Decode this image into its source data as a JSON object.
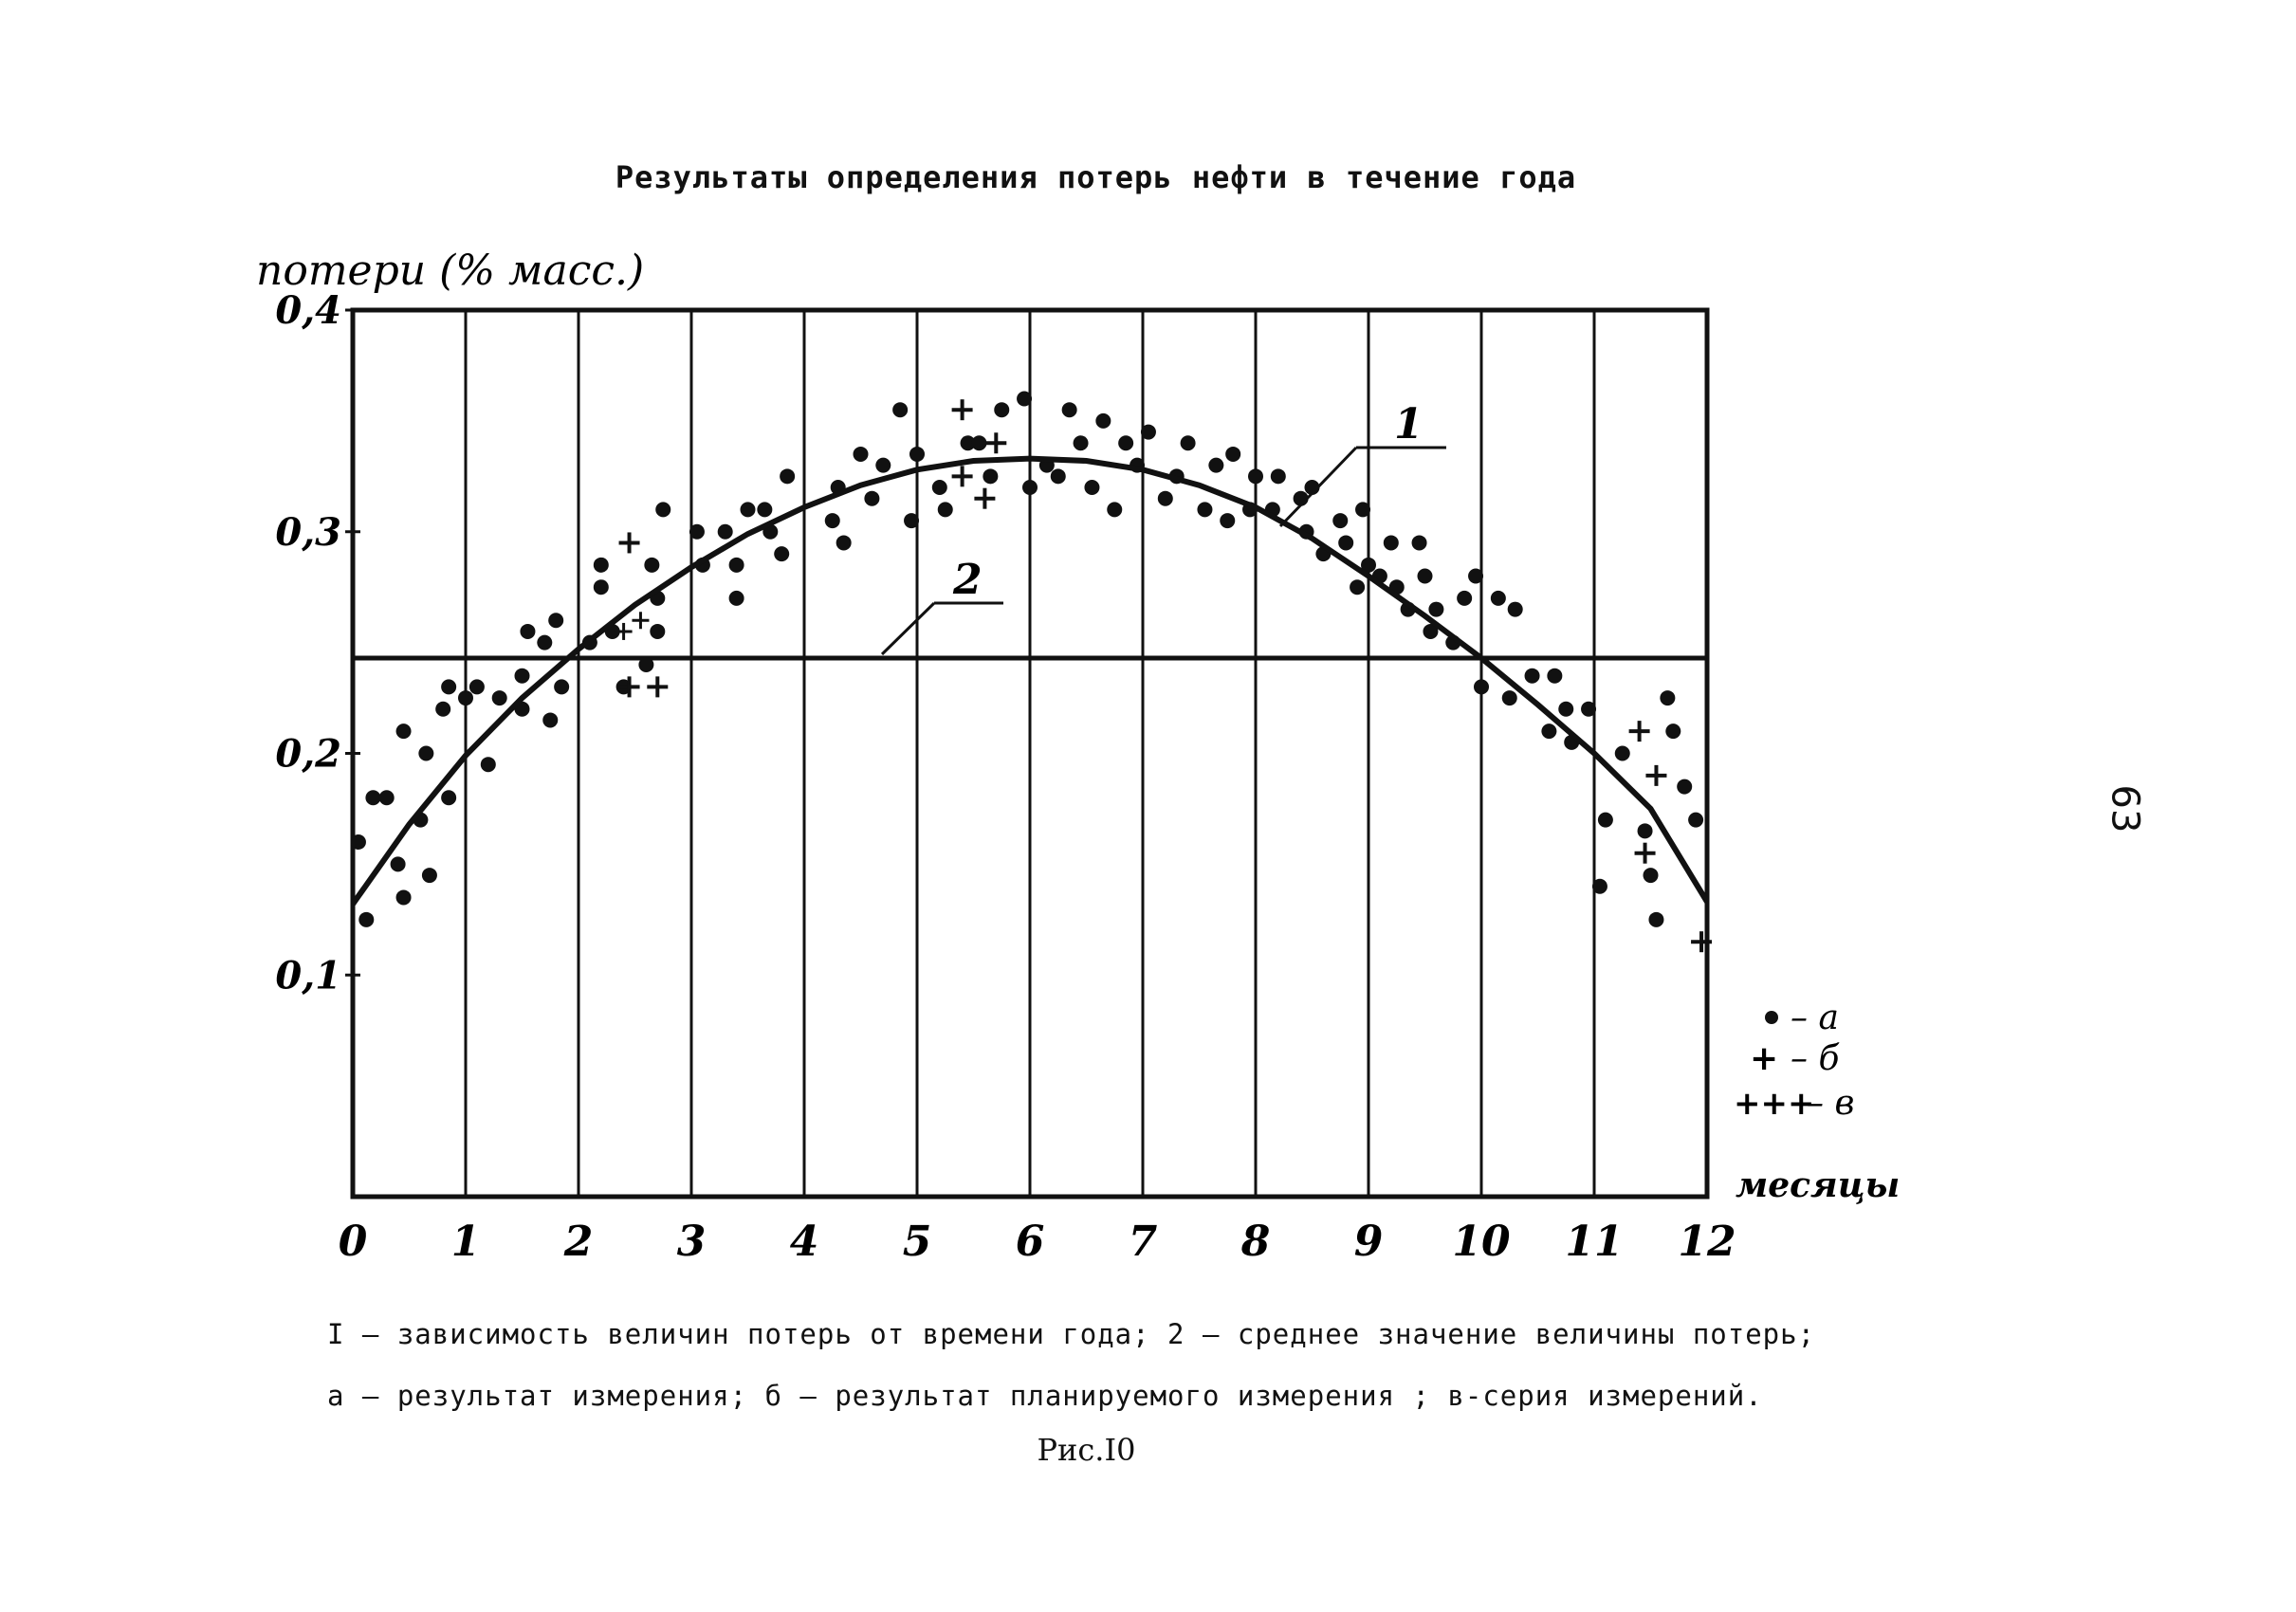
{
  "title": "Результаты определения потерь нефти в течение года",
  "page_number": "63",
  "caption_line1": "I – зависимость величин потерь от времени года; 2 – среднее значение величины потерь;",
  "caption_line2": "а – результат измерения; б – результат планируемого измерения ; в-серия измерений.",
  "figure_label": "Рис.I0",
  "chart_data": {
    "type": "scatter",
    "ylabel": "потери (% масс.)",
    "xlabel": "месяцы",
    "xlim": [
      0,
      12
    ],
    "ylim": [
      0,
      0.4
    ],
    "x_ticks": [
      "0",
      "1",
      "2",
      "3",
      "4",
      "5",
      "6",
      "7",
      "8",
      "9",
      "10",
      "11",
      "12"
    ],
    "y_ticks": [
      {
        "value": 0.1,
        "label": "0,1"
      },
      {
        "value": 0.2,
        "label": "0,2"
      },
      {
        "value": 0.3,
        "label": "0,3"
      },
      {
        "value": 0.4,
        "label": "0,4"
      }
    ],
    "grid": "vertical lines at each month",
    "legend": {
      "placement": "right",
      "entries": [
        {
          "symbol": "•",
          "label": "– а"
        },
        {
          "symbol": "+",
          "label": "– б"
        },
        {
          "symbol": "+++",
          "label": "– в"
        }
      ]
    },
    "curve_label": "1",
    "mean_label": "2",
    "curve": {
      "name": "1",
      "x": [
        0,
        0.5,
        1,
        1.5,
        2,
        2.5,
        3,
        3.5,
        4,
        4.5,
        5,
        5.5,
        6,
        6.5,
        7,
        7.5,
        8,
        8.5,
        9,
        9.5,
        10,
        10.5,
        11,
        11.5,
        12
      ],
      "y": [
        0.132,
        0.168,
        0.199,
        0.225,
        0.247,
        0.267,
        0.284,
        0.299,
        0.311,
        0.321,
        0.328,
        0.332,
        0.333,
        0.332,
        0.328,
        0.321,
        0.311,
        0.297,
        0.28,
        0.262,
        0.243,
        0.222,
        0.2,
        0.175,
        0.133
      ]
    },
    "mean_line": {
      "name": "2",
      "y": 0.243
    },
    "points_a": [
      [
        0.05,
        0.16
      ],
      [
        0.12,
        0.125
      ],
      [
        0.18,
        0.18
      ],
      [
        0.3,
        0.18
      ],
      [
        0.4,
        0.15
      ],
      [
        0.45,
        0.21
      ],
      [
        0.45,
        0.135
      ],
      [
        0.6,
        0.17
      ],
      [
        0.65,
        0.2
      ],
      [
        0.68,
        0.145
      ],
      [
        0.8,
        0.22
      ],
      [
        0.85,
        0.18
      ],
      [
        0.85,
        0.23
      ],
      [
        1.0,
        0.225
      ],
      [
        1.1,
        0.23
      ],
      [
        1.2,
        0.195
      ],
      [
        1.3,
        0.225
      ],
      [
        1.5,
        0.235
      ],
      [
        1.5,
        0.22
      ],
      [
        1.55,
        0.255
      ],
      [
        1.7,
        0.25
      ],
      [
        1.75,
        0.215
      ],
      [
        1.8,
        0.26
      ],
      [
        1.85,
        0.23
      ],
      [
        2.1,
        0.25
      ],
      [
        2.2,
        0.285
      ],
      [
        2.2,
        0.275
      ],
      [
        2.3,
        0.255
      ],
      [
        2.4,
        0.23
      ],
      [
        2.6,
        0.24
      ],
      [
        2.65,
        0.285
      ],
      [
        2.7,
        0.27
      ],
      [
        2.7,
        0.255
      ],
      [
        2.75,
        0.31
      ],
      [
        3.05,
        0.3
      ],
      [
        3.1,
        0.285
      ],
      [
        3.3,
        0.3
      ],
      [
        3.4,
        0.27
      ],
      [
        3.4,
        0.285
      ],
      [
        3.5,
        0.31
      ],
      [
        3.65,
        0.31
      ],
      [
        3.7,
        0.3
      ],
      [
        3.8,
        0.29
      ],
      [
        3.85,
        0.325
      ],
      [
        4.25,
        0.305
      ],
      [
        4.3,
        0.32
      ],
      [
        4.35,
        0.295
      ],
      [
        4.5,
        0.335
      ],
      [
        4.6,
        0.315
      ],
      [
        4.7,
        0.33
      ],
      [
        4.85,
        0.355
      ],
      [
        4.95,
        0.305
      ],
      [
        5.0,
        0.335
      ],
      [
        5.2,
        0.32
      ],
      [
        5.25,
        0.31
      ],
      [
        5.45,
        0.34
      ],
      [
        5.55,
        0.34
      ],
      [
        5.65,
        0.325
      ],
      [
        5.75,
        0.355
      ],
      [
        5.95,
        0.36
      ],
      [
        6.0,
        0.32
      ],
      [
        6.15,
        0.33
      ],
      [
        6.25,
        0.325
      ],
      [
        6.35,
        0.355
      ],
      [
        6.45,
        0.34
      ],
      [
        6.55,
        0.32
      ],
      [
        6.65,
        0.35
      ],
      [
        6.75,
        0.31
      ],
      [
        6.85,
        0.34
      ],
      [
        6.95,
        0.33
      ],
      [
        7.05,
        0.345
      ],
      [
        7.2,
        0.315
      ],
      [
        7.3,
        0.325
      ],
      [
        7.4,
        0.34
      ],
      [
        7.55,
        0.31
      ],
      [
        7.65,
        0.33
      ],
      [
        7.75,
        0.305
      ],
      [
        7.8,
        0.335
      ],
      [
        7.95,
        0.31
      ],
      [
        8.0,
        0.325
      ],
      [
        8.15,
        0.31
      ],
      [
        8.2,
        0.325
      ],
      [
        8.4,
        0.315
      ],
      [
        8.45,
        0.3
      ],
      [
        8.5,
        0.32
      ],
      [
        8.6,
        0.29
      ],
      [
        8.75,
        0.305
      ],
      [
        8.8,
        0.295
      ],
      [
        8.9,
        0.275
      ],
      [
        8.95,
        0.31
      ],
      [
        9.0,
        0.285
      ],
      [
        9.1,
        0.28
      ],
      [
        9.2,
        0.295
      ],
      [
        9.25,
        0.275
      ],
      [
        9.35,
        0.265
      ],
      [
        9.45,
        0.295
      ],
      [
        9.5,
        0.28
      ],
      [
        9.55,
        0.255
      ],
      [
        9.6,
        0.265
      ],
      [
        9.75,
        0.25
      ],
      [
        9.85,
        0.27
      ],
      [
        9.95,
        0.28
      ],
      [
        10.0,
        0.23
      ],
      [
        10.15,
        0.27
      ],
      [
        10.25,
        0.225
      ],
      [
        10.3,
        0.265
      ],
      [
        10.45,
        0.235
      ],
      [
        10.6,
        0.21
      ],
      [
        10.65,
        0.235
      ],
      [
        10.75,
        0.22
      ],
      [
        10.8,
        0.205
      ],
      [
        10.95,
        0.22
      ],
      [
        11.05,
        0.14
      ],
      [
        11.1,
        0.17
      ],
      [
        11.25,
        0.2
      ],
      [
        11.45,
        0.165
      ],
      [
        11.5,
        0.145
      ],
      [
        11.55,
        0.125
      ],
      [
        11.65,
        0.225
      ],
      [
        11.7,
        0.21
      ],
      [
        11.8,
        0.185
      ],
      [
        11.9,
        0.17
      ]
    ],
    "points_b": [
      [
        2.45,
        0.295
      ],
      [
        2.45,
        0.23
      ],
      [
        2.7,
        0.23
      ],
      [
        5.4,
        0.355
      ],
      [
        5.4,
        0.325
      ],
      [
        5.7,
        0.34
      ],
      [
        5.6,
        0.315
      ],
      [
        11.4,
        0.21
      ],
      [
        11.55,
        0.19
      ],
      [
        11.45,
        0.155
      ],
      [
        11.95,
        0.115
      ]
    ],
    "points_c": [
      [
        2.4,
        0.255
      ],
      [
        2.55,
        0.26
      ]
    ]
  }
}
